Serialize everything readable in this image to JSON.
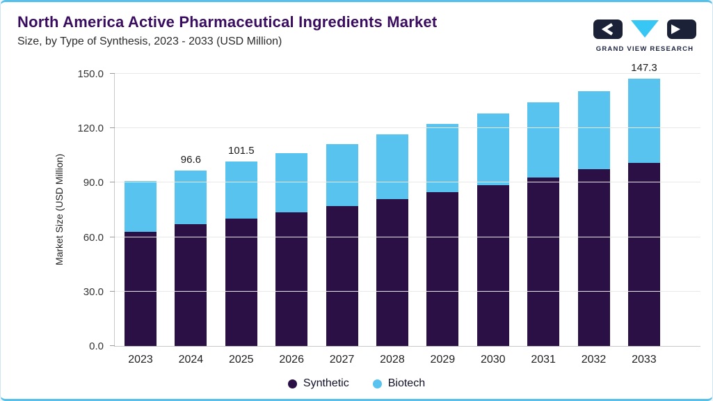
{
  "page": {
    "logo_text": "GRAND VIEW RESEARCH"
  },
  "colors": {
    "synthetic": "#2A1045",
    "biotech": "#58C3EF",
    "title_text": "#3A0C5F",
    "accent_border": "#55C1EA",
    "logo_dark": "#1B2136",
    "logo_cyan": "#38C6F4"
  },
  "chart_data": {
    "type": "bar",
    "stacked": true,
    "title": "North America Active Pharmaceutical Ingredients Market",
    "subtitle": "Size, by Type of Synthesis, 2023 - 2033 (USD Million)",
    "ylabel": "Market Size (USD Million)",
    "ylim": [
      0,
      150
    ],
    "ytick_labels": [
      "0.0",
      "30.0",
      "60.0",
      "90.0",
      "120.0",
      "150.0"
    ],
    "grid": "horizontal",
    "legend_position": "bottom",
    "categories": [
      "2023",
      "2024",
      "2025",
      "2026",
      "2027",
      "2028",
      "2029",
      "2030",
      "2031",
      "2032",
      "2033"
    ],
    "series": [
      {
        "name": "Synthetic",
        "color": "#2A1045",
        "values": [
          63.1,
          67.2,
          70.4,
          73.7,
          77.2,
          80.9,
          84.7,
          88.7,
          92.9,
          97.3,
          100.9
        ]
      },
      {
        "name": "Biotech",
        "color": "#58C3EF",
        "values": [
          27.7,
          29.4,
          31.1,
          32.6,
          34.2,
          35.8,
          37.6,
          39.4,
          41.4,
          43.3,
          46.4
        ]
      }
    ],
    "totals": [
      90.8,
      96.6,
      101.5,
      106.3,
      111.4,
      116.7,
      122.3,
      128.1,
      134.3,
      140.6,
      147.3
    ],
    "bar_labels": [
      "",
      "96.6",
      "101.5",
      "",
      "",
      "",
      "",
      "",
      "",
      "",
      "147.3"
    ]
  },
  "legend": {
    "items": [
      {
        "label": "Synthetic",
        "color": "#2A1045"
      },
      {
        "label": "Biotech",
        "color": "#58C3EF"
      }
    ]
  }
}
